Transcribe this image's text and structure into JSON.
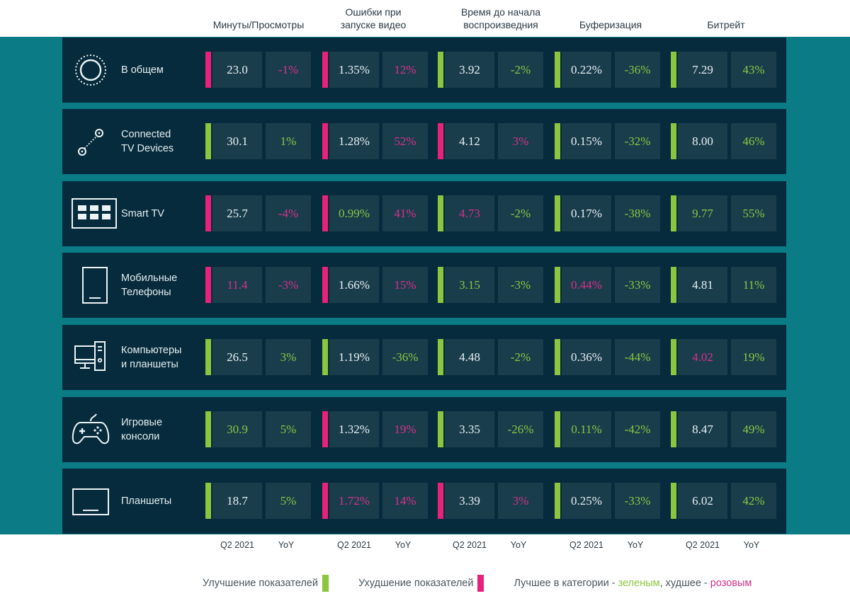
{
  "colors": {
    "improvement": "#8cc63f",
    "deterioration": "#e8217a",
    "best": "#8cc63f",
    "worst": "#d6318a",
    "neutral": "#e8f0f2"
  },
  "chart_data": {
    "type": "table",
    "title": "",
    "metrics": [
      {
        "key": "minutes",
        "label": "Минуты/Просмотры"
      },
      {
        "key": "errors",
        "label": "Ошибки при запуске видео"
      },
      {
        "key": "startup",
        "label": "Время до начала воспроизведния"
      },
      {
        "key": "buffering",
        "label": "Буферизация"
      },
      {
        "key": "bitrate",
        "label": "Битрейт"
      }
    ],
    "subcolumns": [
      "Q2 2021",
      "YoY"
    ],
    "rows": [
      {
        "device": "В общем",
        "icon": "globe-dotted-circle-icon",
        "cells": [
          {
            "value": "23.0",
            "yoy": "-1%",
            "trend": "worse",
            "value_rank": "none",
            "yoy_rank": "worst"
          },
          {
            "value": "1.35%",
            "yoy": "12%",
            "trend": "worse",
            "value_rank": "none",
            "yoy_rank": "worst"
          },
          {
            "value": "3.92",
            "yoy": "-2%",
            "trend": "better",
            "value_rank": "none",
            "yoy_rank": "best"
          },
          {
            "value": "0.22%",
            "yoy": "-36%",
            "trend": "better",
            "value_rank": "none",
            "yoy_rank": "best"
          },
          {
            "value": "7.29",
            "yoy": "43%",
            "trend": "better",
            "value_rank": "none",
            "yoy_rank": "best"
          }
        ]
      },
      {
        "device": "Connected TV Devices",
        "icon": "connected-dots-icon",
        "cells": [
          {
            "value": "30.1",
            "yoy": "1%",
            "trend": "better",
            "value_rank": "none",
            "yoy_rank": "best"
          },
          {
            "value": "1.28%",
            "yoy": "52%",
            "trend": "worse",
            "value_rank": "none",
            "yoy_rank": "worst"
          },
          {
            "value": "4.12",
            "yoy": "3%",
            "trend": "worse",
            "value_rank": "none",
            "yoy_rank": "worst"
          },
          {
            "value": "0.15%",
            "yoy": "-32%",
            "trend": "better",
            "value_rank": "none",
            "yoy_rank": "best"
          },
          {
            "value": "8.00",
            "yoy": "46%",
            "trend": "better",
            "value_rank": "none",
            "yoy_rank": "best"
          }
        ]
      },
      {
        "device": "Smart TV",
        "icon": "smart-tv-grid-icon",
        "cells": [
          {
            "value": "25.7",
            "yoy": "-4%",
            "trend": "worse",
            "value_rank": "none",
            "yoy_rank": "worst"
          },
          {
            "value": "0.99%",
            "yoy": "41%",
            "trend": "worse",
            "value_rank": "best",
            "yoy_rank": "worst"
          },
          {
            "value": "4.73",
            "yoy": "-2%",
            "trend": "better",
            "value_rank": "worst",
            "yoy_rank": "best"
          },
          {
            "value": "0.17%",
            "yoy": "-38%",
            "trend": "better",
            "value_rank": "none",
            "yoy_rank": "best"
          },
          {
            "value": "9.77",
            "yoy": "55%",
            "trend": "better",
            "value_rank": "best",
            "yoy_rank": "best"
          }
        ]
      },
      {
        "device": "Мобильные Телефоны",
        "icon": "mobile-phone-icon",
        "cells": [
          {
            "value": "11.4",
            "yoy": "-3%",
            "trend": "worse",
            "value_rank": "worst",
            "yoy_rank": "worst"
          },
          {
            "value": "1.66%",
            "yoy": "15%",
            "trend": "worse",
            "value_rank": "none",
            "yoy_rank": "worst"
          },
          {
            "value": "3.15",
            "yoy": "-3%",
            "trend": "better",
            "value_rank": "best",
            "yoy_rank": "best"
          },
          {
            "value": "0.44%",
            "yoy": "-33%",
            "trend": "better",
            "value_rank": "worst",
            "yoy_rank": "best"
          },
          {
            "value": "4.81",
            "yoy": "11%",
            "trend": "better",
            "value_rank": "none",
            "yoy_rank": "best"
          }
        ]
      },
      {
        "device": "Компьютеры и планшеты",
        "icon": "desktop-computer-icon",
        "cells": [
          {
            "value": "26.5",
            "yoy": "3%",
            "trend": "better",
            "value_rank": "none",
            "yoy_rank": "best"
          },
          {
            "value": "1.19%",
            "yoy": "-36%",
            "trend": "better",
            "value_rank": "none",
            "yoy_rank": "best"
          },
          {
            "value": "4.48",
            "yoy": "-2%",
            "trend": "better",
            "value_rank": "none",
            "yoy_rank": "best"
          },
          {
            "value": "0.36%",
            "yoy": "-44%",
            "trend": "better",
            "value_rank": "none",
            "yoy_rank": "best"
          },
          {
            "value": "4.02",
            "yoy": "19%",
            "trend": "better",
            "value_rank": "worst",
            "yoy_rank": "best"
          }
        ]
      },
      {
        "device": "Игровые консоли",
        "icon": "gamepad-icon",
        "cells": [
          {
            "value": "30.9",
            "yoy": "5%",
            "trend": "better",
            "value_rank": "best",
            "yoy_rank": "best"
          },
          {
            "value": "1.32%",
            "yoy": "19%",
            "trend": "worse",
            "value_rank": "none",
            "yoy_rank": "worst"
          },
          {
            "value": "3.35",
            "yoy": "-26%",
            "trend": "better",
            "value_rank": "none",
            "yoy_rank": "best"
          },
          {
            "value": "0.11%",
            "yoy": "-42%",
            "trend": "better",
            "value_rank": "best",
            "yoy_rank": "best"
          },
          {
            "value": "8.47",
            "yoy": "49%",
            "trend": "better",
            "value_rank": "none",
            "yoy_rank": "best"
          }
        ]
      },
      {
        "device": "Планшеты",
        "icon": "tablet-landscape-icon",
        "cells": [
          {
            "value": "18.7",
            "yoy": "5%",
            "trend": "better",
            "value_rank": "none",
            "yoy_rank": "best"
          },
          {
            "value": "1.72%",
            "yoy": "14%",
            "trend": "worse",
            "value_rank": "worst",
            "yoy_rank": "worst"
          },
          {
            "value": "3.39",
            "yoy": "3%",
            "trend": "worse",
            "value_rank": "none",
            "yoy_rank": "worst"
          },
          {
            "value": "0.25%",
            "yoy": "-33%",
            "trend": "better",
            "value_rank": "none",
            "yoy_rank": "best"
          },
          {
            "value": "6.02",
            "yoy": "42%",
            "trend": "better",
            "value_rank": "none",
            "yoy_rank": "best"
          }
        ]
      }
    ],
    "legend": [
      {
        "label": "Улучшение показателей",
        "color": "#8cc63f"
      },
      {
        "label": "Ухудшение показателей",
        "color": "#e8217a"
      }
    ],
    "legend_note": {
      "prefix": "Лучшее в категории - ",
      "green_word": "зеленым",
      "middle": ", худшее - ",
      "pink_word": "розовым"
    }
  },
  "headers": {
    "minutes": [
      "",
      "Минуты/Просмотры"
    ],
    "errors": [
      "Ошибки при",
      "запуске видео"
    ],
    "startup": [
      "Время до начала",
      "воспроизведния"
    ],
    "buffering": [
      "",
      "Буферизация"
    ],
    "bitrate": [
      "",
      "Битрейт"
    ]
  },
  "row_labels": [
    [
      "В общем"
    ],
    [
      "Connected",
      "TV Devices"
    ],
    [
      "Smart TV"
    ],
    [
      "Мобильные",
      "Телефоны"
    ],
    [
      "Компьютеры",
      "и планшеты"
    ],
    [
      "Игровые",
      "консоли"
    ],
    [
      "Планшеты"
    ]
  ]
}
